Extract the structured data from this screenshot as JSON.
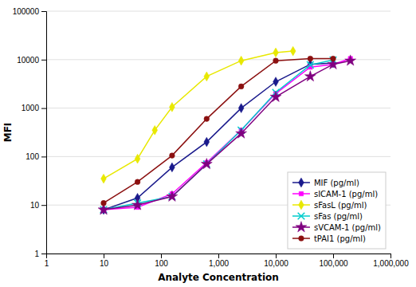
{
  "chart_data": {
    "type": "line",
    "xlabel": "Analyte Concentration",
    "ylabel": "MFI",
    "log": true,
    "grid": "y",
    "legend": "lower right",
    "xlim": [
      1,
      1000000
    ],
    "ylim": [
      1,
      100000
    ],
    "xticks": [
      1,
      10,
      100,
      {
        "value": 1000,
        "label": "1,000"
      },
      {
        "value": 10000,
        "label": "10,000"
      },
      {
        "value": 100000,
        "label": "100,000"
      },
      {
        "value": 1000000,
        "label": "1,000,000"
      }
    ],
    "yticks": [
      1,
      10,
      100,
      1000,
      10000,
      100000
    ],
    "series": [
      {
        "name": "MIF (pg/ml)",
        "color": "#1a1a8c",
        "marker": "diamond",
        "x": [
          10,
          39,
          156,
          625,
          2500,
          10000,
          40000,
          100000
        ],
        "values": [
          8,
          14,
          60,
          200,
          1000,
          3500,
          8000,
          8500
        ]
      },
      {
        "name": "sICAM-1 (pg/ml)",
        "color": "#ff00ff",
        "marker": "square",
        "x": [
          10,
          39,
          156,
          625,
          2500,
          10000,
          40000,
          100000,
          200000
        ],
        "values": [
          8,
          9,
          17,
          75,
          350,
          2000,
          7000,
          8000,
          10500
        ]
      },
      {
        "name": "sFasL (pg/ml)",
        "color": "#e8e800",
        "marker": "diamond",
        "x": [
          10,
          39,
          78,
          156,
          625,
          2500,
          10000,
          20000
        ],
        "values": [
          35,
          90,
          350,
          1050,
          4500,
          9500,
          14000,
          15000
        ]
      },
      {
        "name": "sFas (pg/ml)",
        "color": "#00cccc",
        "marker": "x",
        "x": [
          10,
          39,
          156,
          625,
          2500,
          10000,
          40000,
          100000
        ],
        "values": [
          8,
          11,
          15,
          70,
          350,
          2100,
          7800,
          9800
        ]
      },
      {
        "name": "sVCAM-1 (pg/ml)",
        "color": "#800080",
        "marker": "star",
        "x": [
          10,
          39,
          156,
          625,
          2500,
          10000,
          40000,
          100000,
          200000
        ],
        "values": [
          8,
          10,
          15,
          70,
          300,
          1700,
          4500,
          8000,
          9500
        ]
      },
      {
        "name": "tPAI1 (pg/ml)",
        "color": "#8b1010",
        "marker": "circle",
        "x": [
          10,
          39,
          156,
          625,
          2500,
          10000,
          40000,
          100000
        ],
        "values": [
          11,
          30,
          105,
          600,
          2800,
          9500,
          10500,
          10500
        ]
      }
    ]
  }
}
